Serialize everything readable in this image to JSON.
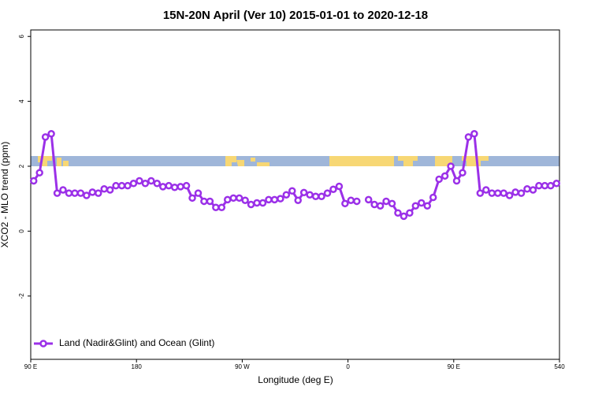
{
  "chart_data": {
    "type": "line",
    "title": "15N-20N April (Ver 10)   2015-01-01 to 2020-12-18",
    "x_label": "Longitude (deg E)",
    "y_label": "XCO2 - MLO trend (ppm)",
    "x": [
      92.5,
      97.5,
      102.5,
      107.5,
      112.5,
      117.5,
      122.5,
      127.5,
      132.5,
      137.5,
      142.5,
      147.5,
      152.5,
      157.5,
      162.5,
      167.5,
      172.5,
      177.5,
      182.5,
      187.5,
      192.5,
      197.5,
      202.5,
      207.5,
      212.5,
      217.5,
      222.5,
      227.5,
      232.5,
      237.5,
      242.5,
      247.5,
      252.5,
      257.5,
      262.5,
      267.5,
      272.5,
      277.5,
      282.5,
      287.5,
      292.5,
      297.5,
      302.5,
      307.5,
      312.5,
      317.5,
      322.5,
      327.5,
      332.5,
      337.5,
      342.5,
      347.5,
      352.5,
      357.5,
      362.5,
      367.5,
      372.5,
      377.5,
      382.5,
      387.5,
      392.5,
      397.5,
      402.5,
      407.5,
      412.5,
      417.5,
      422.5,
      427.5,
      432.5,
      437.5,
      442.5,
      447.5,
      452.5,
      457.5,
      462.5,
      467.5,
      472.5,
      477.5,
      482.5,
      487.5,
      492.5,
      497.5,
      502.5,
      507.5,
      512.5,
      517.5,
      522.5,
      527.5,
      532.5,
      537.5
    ],
    "series": [
      {
        "name": "Land (Nadir&Glint) and Ocean (Glint)",
        "color": "#9b30e8",
        "values": [
          1.55,
          1.8,
          2.9,
          3.0,
          1.17,
          1.27,
          1.17,
          1.17,
          1.17,
          1.1,
          1.2,
          1.17,
          1.3,
          1.27,
          1.4,
          1.4,
          1.4,
          1.47,
          1.55,
          1.47,
          1.55,
          1.47,
          1.37,
          1.4,
          1.35,
          1.37,
          1.4,
          1.02,
          1.17,
          0.92,
          0.92,
          0.73,
          0.73,
          0.97,
          1.02,
          1.02,
          0.95,
          0.82,
          0.87,
          0.87,
          0.97,
          0.97,
          1.0,
          1.12,
          1.24,
          0.95,
          1.19,
          1.12,
          1.07,
          1.07,
          1.17,
          1.29,
          1.38,
          0.85,
          0.95,
          0.92,
          null,
          0.97,
          0.82,
          0.78,
          0.92,
          0.85,
          0.56,
          0.46,
          0.56,
          0.78,
          0.87,
          0.78,
          1.04,
          1.6,
          1.7,
          2.0,
          1.55,
          1.8,
          2.9,
          3.0,
          1.17,
          1.27,
          1.17,
          1.17,
          1.17,
          1.1,
          1.2,
          1.17,
          1.3,
          1.27,
          1.4,
          1.4,
          1.4,
          1.47
        ]
      }
    ],
    "xlim": [
      90,
      540
    ],
    "xticks": [
      {
        "value": 90,
        "label": "90 E"
      },
      180,
      {
        "value": 270,
        "label": "90 W"
      },
      {
        "value": 360,
        "label": "0"
      },
      {
        "value": 450,
        "label": "90 E"
      },
      540
    ],
    "ylim": [
      -3.95,
      6.2
    ],
    "yticks": [
      -2,
      0,
      2,
      4,
      6
    ],
    "legend": "bottom-left"
  }
}
